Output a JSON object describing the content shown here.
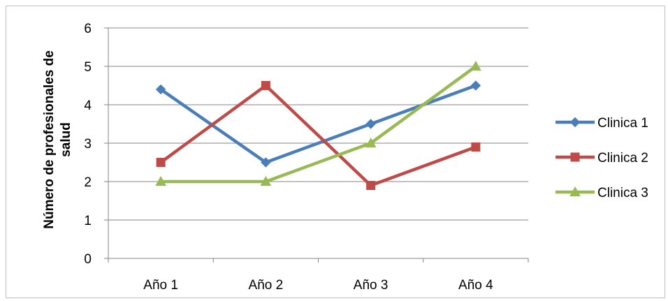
{
  "chart_data": {
    "type": "line",
    "categories": [
      "Año 1",
      "Año 2",
      "Año 3",
      "Año 4"
    ],
    "series": [
      {
        "name": "Clinica 1",
        "values": [
          4.4,
          2.5,
          3.5,
          4.5
        ],
        "color": "#4a7ebb",
        "marker": "diamond"
      },
      {
        "name": "Clinica 2",
        "values": [
          2.5,
          4.5,
          1.9,
          2.9
        ],
        "color": "#be4b48",
        "marker": "square"
      },
      {
        "name": "Clinica 3",
        "values": [
          2.0,
          2.0,
          3.0,
          5.0
        ],
        "color": "#98b954",
        "marker": "triangle"
      }
    ],
    "title": "",
    "xlabel": "",
    "ylabel_lines": [
      "Número de profesionales de",
      "salud"
    ],
    "ylim": [
      0,
      6
    ],
    "yticks": [
      "0",
      "1",
      "2",
      "3",
      "4",
      "5",
      "6"
    ],
    "grid": true,
    "legend_position": "right"
  }
}
